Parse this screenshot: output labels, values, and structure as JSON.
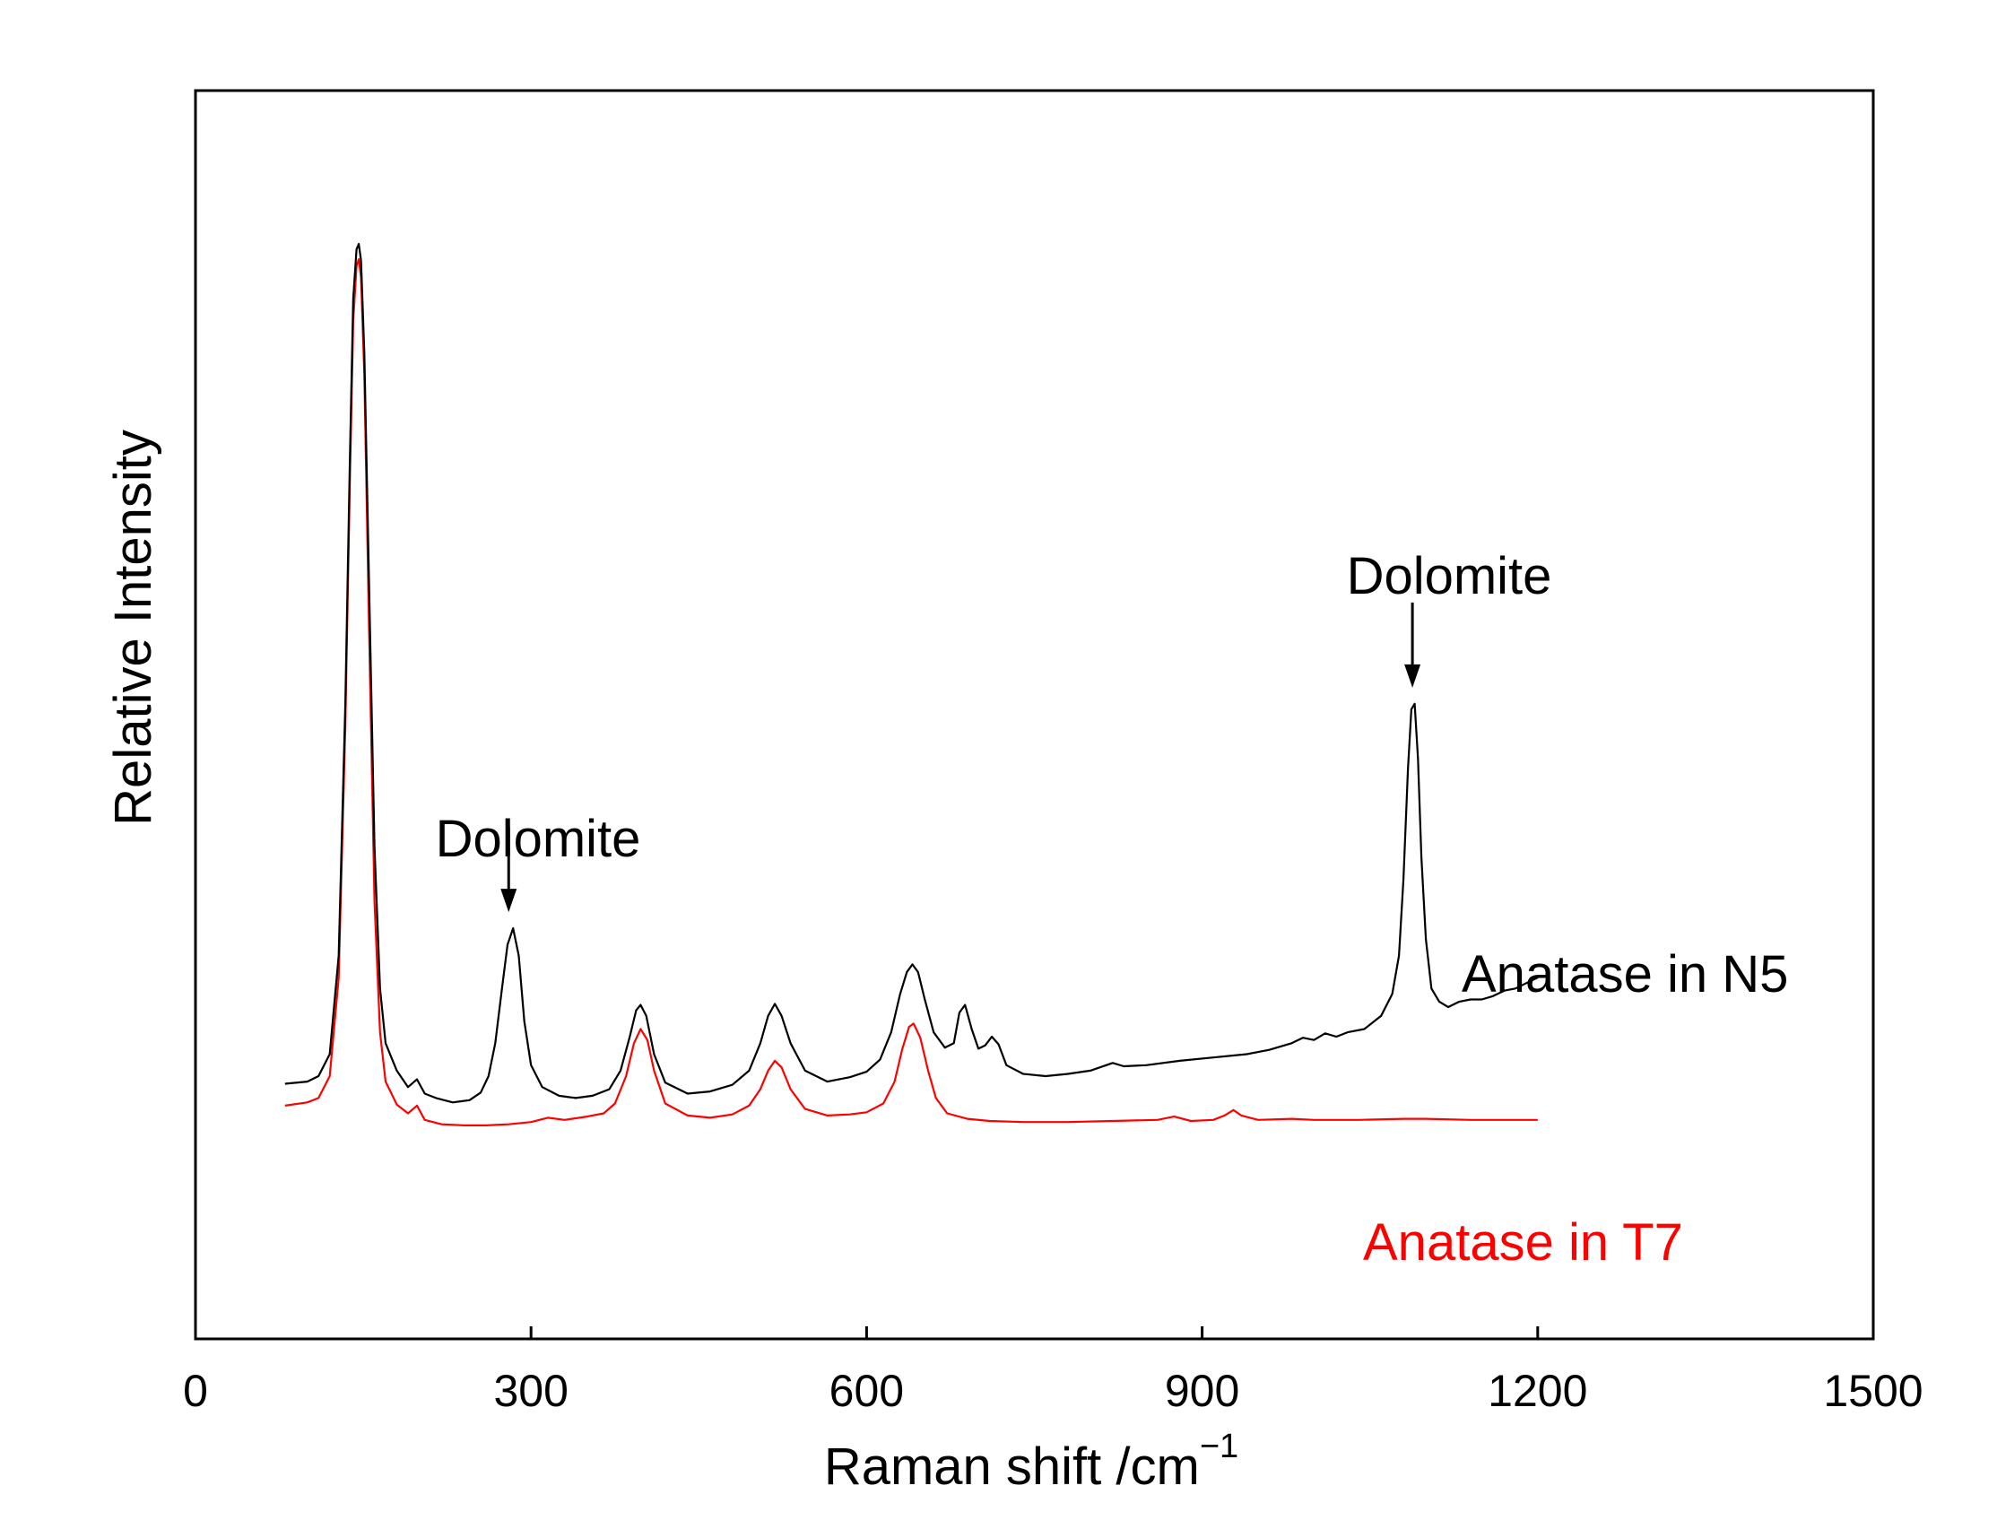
{
  "chart_data": {
    "type": "line",
    "title": "",
    "xlabel": "Raman shift /cm",
    "xlabel_superscript": "−1",
    "ylabel": "Relative Intensity",
    "xlim": [
      0,
      1500
    ],
    "x_ticks": [
      0,
      300,
      600,
      900,
      1200,
      1500
    ],
    "y_ticks": [],
    "grid": false,
    "legend": "none",
    "colors": {
      "axis": "#000000",
      "N5": "#000000",
      "T7": "#ff0000"
    },
    "series": [
      {
        "name": "Anatase in N5",
        "color": "#000000",
        "points": [
          [
            80,
            23.3
          ],
          [
            100,
            23.5
          ],
          [
            110,
            24.0
          ],
          [
            120,
            26.0
          ],
          [
            128,
            35.0
          ],
          [
            134,
            58.0
          ],
          [
            138,
            80.0
          ],
          [
            141,
            95.0
          ],
          [
            144,
            99.5
          ],
          [
            146,
            100.0
          ],
          [
            148,
            98.5
          ],
          [
            151,
            90.0
          ],
          [
            155,
            70.0
          ],
          [
            160,
            45.0
          ],
          [
            165,
            32.0
          ],
          [
            170,
            27.0
          ],
          [
            180,
            24.5
          ],
          [
            190,
            23.0
          ],
          [
            198,
            23.7
          ],
          [
            205,
            22.4
          ],
          [
            215,
            22.0
          ],
          [
            230,
            21.6
          ],
          [
            245,
            21.8
          ],
          [
            255,
            22.5
          ],
          [
            262,
            24.0
          ],
          [
            268,
            27.0
          ],
          [
            274,
            32.0
          ],
          [
            279,
            36.0
          ],
          [
            284,
            37.5
          ],
          [
            289,
            35.0
          ],
          [
            294,
            29.0
          ],
          [
            300,
            25.0
          ],
          [
            310,
            23.0
          ],
          [
            325,
            22.2
          ],
          [
            340,
            22.0
          ],
          [
            355,
            22.2
          ],
          [
            370,
            22.8
          ],
          [
            380,
            24.5
          ],
          [
            388,
            27.5
          ],
          [
            394,
            30.0
          ],
          [
            398,
            30.5
          ],
          [
            403,
            29.5
          ],
          [
            410,
            26.0
          ],
          [
            420,
            23.4
          ],
          [
            440,
            22.4
          ],
          [
            460,
            22.6
          ],
          [
            480,
            23.2
          ],
          [
            495,
            24.5
          ],
          [
            505,
            27.0
          ],
          [
            512,
            29.5
          ],
          [
            518,
            30.6
          ],
          [
            524,
            29.5
          ],
          [
            532,
            27.0
          ],
          [
            545,
            24.5
          ],
          [
            565,
            23.5
          ],
          [
            585,
            23.9
          ],
          [
            600,
            24.4
          ],
          [
            612,
            25.5
          ],
          [
            622,
            28.0
          ],
          [
            630,
            31.5
          ],
          [
            636,
            33.5
          ],
          [
            641,
            34.2
          ],
          [
            646,
            33.5
          ],
          [
            652,
            31.0
          ],
          [
            660,
            28.0
          ],
          [
            670,
            26.6
          ],
          [
            678,
            27.0
          ],
          [
            683,
            29.8
          ],
          [
            688,
            30.5
          ],
          [
            694,
            28.3
          ],
          [
            700,
            26.5
          ],
          [
            706,
            26.8
          ],
          [
            712,
            27.6
          ],
          [
            718,
            26.9
          ],
          [
            725,
            25.0
          ],
          [
            740,
            24.2
          ],
          [
            760,
            24.0
          ],
          [
            780,
            24.2
          ],
          [
            800,
            24.5
          ],
          [
            820,
            25.2
          ],
          [
            830,
            24.9
          ],
          [
            850,
            25.0
          ],
          [
            880,
            25.4
          ],
          [
            910,
            25.7
          ],
          [
            940,
            26.0
          ],
          [
            960,
            26.4
          ],
          [
            980,
            27.0
          ],
          [
            990,
            27.5
          ],
          [
            1000,
            27.3
          ],
          [
            1010,
            27.9
          ],
          [
            1020,
            27.6
          ],
          [
            1030,
            28.0
          ],
          [
            1045,
            28.3
          ],
          [
            1060,
            29.5
          ],
          [
            1070,
            31.5
          ],
          [
            1076,
            35.0
          ],
          [
            1080,
            42.0
          ],
          [
            1084,
            52.0
          ],
          [
            1087,
            57.5
          ],
          [
            1090,
            58.0
          ],
          [
            1093,
            53.0
          ],
          [
            1096,
            44.0
          ],
          [
            1100,
            36.5
          ],
          [
            1105,
            32.0
          ],
          [
            1112,
            30.8
          ],
          [
            1120,
            30.3
          ],
          [
            1130,
            30.8
          ],
          [
            1140,
            31.0
          ],
          [
            1150,
            31.0
          ],
          [
            1160,
            31.3
          ],
          [
            1170,
            31.8
          ],
          [
            1180,
            32.0
          ],
          [
            1190,
            32.5
          ],
          [
            1200,
            33.0
          ]
        ]
      },
      {
        "name": "Anatase in T7",
        "color": "#ff0000",
        "points": [
          [
            80,
            21.3
          ],
          [
            100,
            21.6
          ],
          [
            110,
            22.0
          ],
          [
            120,
            24.0
          ],
          [
            128,
            33.0
          ],
          [
            134,
            56.0
          ],
          [
            138,
            78.0
          ],
          [
            141,
            93.0
          ],
          [
            144,
            98.0
          ],
          [
            146,
            98.6
          ],
          [
            148,
            97.0
          ],
          [
            151,
            88.0
          ],
          [
            155,
            66.0
          ],
          [
            160,
            40.0
          ],
          [
            165,
            28.0
          ],
          [
            170,
            23.5
          ],
          [
            180,
            21.4
          ],
          [
            190,
            20.6
          ],
          [
            198,
            21.3
          ],
          [
            205,
            20.0
          ],
          [
            220,
            19.6
          ],
          [
            240,
            19.5
          ],
          [
            260,
            19.5
          ],
          [
            280,
            19.6
          ],
          [
            300,
            19.8
          ],
          [
            315,
            20.2
          ],
          [
            330,
            20.0
          ],
          [
            350,
            20.3
          ],
          [
            365,
            20.6
          ],
          [
            375,
            21.5
          ],
          [
            385,
            24.0
          ],
          [
            392,
            27.0
          ],
          [
            398,
            28.3
          ],
          [
            404,
            27.3
          ],
          [
            410,
            24.5
          ],
          [
            420,
            21.5
          ],
          [
            440,
            20.4
          ],
          [
            460,
            20.2
          ],
          [
            480,
            20.5
          ],
          [
            495,
            21.3
          ],
          [
            505,
            22.8
          ],
          [
            512,
            24.5
          ],
          [
            518,
            25.4
          ],
          [
            524,
            24.8
          ],
          [
            532,
            22.8
          ],
          [
            545,
            21.0
          ],
          [
            565,
            20.4
          ],
          [
            585,
            20.5
          ],
          [
            600,
            20.7
          ],
          [
            615,
            21.5
          ],
          [
            625,
            23.5
          ],
          [
            632,
            26.5
          ],
          [
            638,
            28.5
          ],
          [
            642,
            28.8
          ],
          [
            648,
            27.5
          ],
          [
            655,
            24.5
          ],
          [
            662,
            22.0
          ],
          [
            672,
            20.6
          ],
          [
            690,
            20.1
          ],
          [
            710,
            19.9
          ],
          [
            740,
            19.8
          ],
          [
            780,
            19.8
          ],
          [
            820,
            19.9
          ],
          [
            860,
            20.0
          ],
          [
            875,
            20.3
          ],
          [
            890,
            19.9
          ],
          [
            910,
            20.0
          ],
          [
            920,
            20.4
          ],
          [
            928,
            20.9
          ],
          [
            935,
            20.4
          ],
          [
            950,
            20.0
          ],
          [
            980,
            20.1
          ],
          [
            1000,
            20.0
          ],
          [
            1040,
            20.0
          ],
          [
            1080,
            20.1
          ],
          [
            1100,
            20.1
          ],
          [
            1140,
            20.0
          ],
          [
            1200,
            20.0
          ]
        ]
      }
    ],
    "annotations": [
      {
        "text": "Dolomite",
        "arrow_x": 280,
        "arrow_tip_y": 37.5
      },
      {
        "text": "Dolomite",
        "arrow_x": 1088,
        "arrow_tip_y": 58.0
      }
    ],
    "series_labels": [
      {
        "text": "Anatase in N5",
        "color": "#000000"
      },
      {
        "text": "Anatase in T7",
        "color": "#ff0000"
      }
    ]
  }
}
